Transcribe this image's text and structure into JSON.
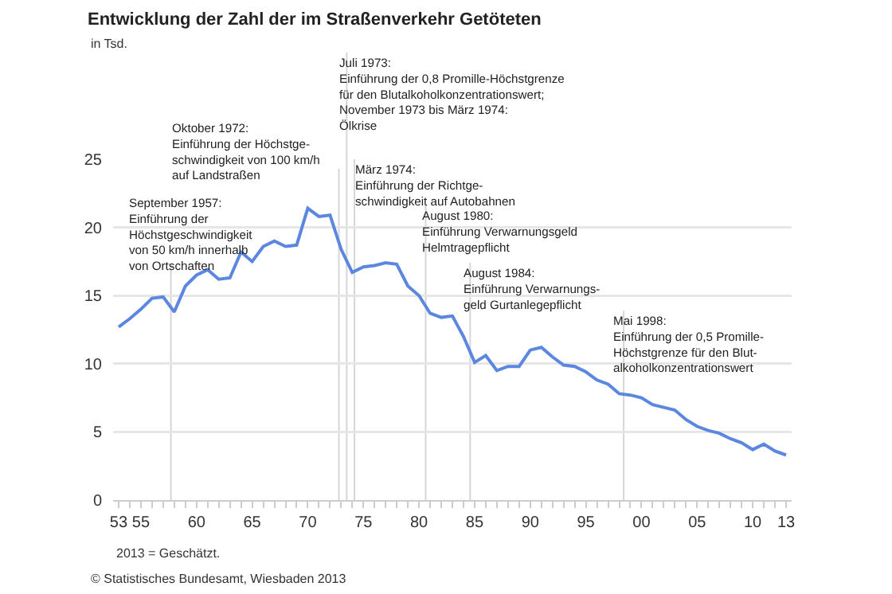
{
  "chart_data": {
    "type": "line",
    "title": "Entwicklung der Zahl der im Straßenverkehr Getöteten",
    "subtitle": "in Tsd.",
    "x": [
      1953,
      1954,
      1955,
      1956,
      1957,
      1958,
      1959,
      1960,
      1961,
      1962,
      1963,
      1964,
      1965,
      1966,
      1967,
      1968,
      1969,
      1970,
      1971,
      1972,
      1973,
      1974,
      1975,
      1976,
      1977,
      1978,
      1979,
      1980,
      1981,
      1982,
      1983,
      1984,
      1985,
      1986,
      1987,
      1988,
      1989,
      1990,
      1991,
      1992,
      1993,
      1994,
      1995,
      1996,
      1997,
      1998,
      1999,
      2000,
      2001,
      2002,
      2003,
      2004,
      2005,
      2006,
      2007,
      2008,
      2009,
      2010,
      2011,
      2012,
      2013
    ],
    "series": [
      {
        "color": "#5b87e0",
        "values": [
          12.7,
          13.3,
          14.0,
          14.8,
          14.9,
          13.8,
          15.7,
          16.5,
          16.9,
          16.2,
          16.3,
          18.2,
          17.5,
          18.6,
          19.0,
          18.6,
          18.7,
          21.4,
          20.8,
          20.9,
          18.4,
          16.7,
          17.1,
          17.2,
          17.4,
          17.3,
          15.7,
          15.0,
          13.7,
          13.4,
          13.5,
          12.0,
          10.1,
          10.6,
          9.5,
          9.8,
          9.8,
          11.0,
          11.2,
          10.5,
          9.9,
          9.8,
          9.4,
          8.8,
          8.5,
          7.8,
          7.7,
          7.5,
          7.0,
          6.8,
          6.6,
          5.9,
          5.4,
          5.1,
          4.9,
          4.5,
          4.2,
          3.7,
          4.1,
          3.6,
          3.3
        ]
      }
    ],
    "xlim": [
      1952.5,
      2013.5
    ],
    "xticks": [
      {
        "value": 1953,
        "label": "53"
      },
      {
        "value": 1954,
        "label": null
      },
      {
        "value": 1955,
        "label": "55"
      },
      {
        "value": 1956,
        "label": null
      },
      {
        "value": 1957,
        "label": null
      },
      {
        "value": 1958,
        "label": null
      },
      {
        "value": 1959,
        "label": null
      },
      {
        "value": 1960,
        "label": "60"
      },
      {
        "value": 1961,
        "label": null
      },
      {
        "value": 1962,
        "label": null
      },
      {
        "value": 1963,
        "label": null
      },
      {
        "value": 1964,
        "label": null
      },
      {
        "value": 1965,
        "label": "65"
      },
      {
        "value": 1966,
        "label": null
      },
      {
        "value": 1967,
        "label": null
      },
      {
        "value": 1968,
        "label": null
      },
      {
        "value": 1969,
        "label": null
      },
      {
        "value": 1970,
        "label": "70"
      },
      {
        "value": 1971,
        "label": null
      },
      {
        "value": 1972,
        "label": null
      },
      {
        "value": 1973,
        "label": null
      },
      {
        "value": 1974,
        "label": null
      },
      {
        "value": 1975,
        "label": "75"
      },
      {
        "value": 1976,
        "label": null
      },
      {
        "value": 1977,
        "label": null
      },
      {
        "value": 1978,
        "label": null
      },
      {
        "value": 1979,
        "label": null
      },
      {
        "value": 1980,
        "label": "80"
      },
      {
        "value": 1981,
        "label": null
      },
      {
        "value": 1982,
        "label": null
      },
      {
        "value": 1983,
        "label": null
      },
      {
        "value": 1984,
        "label": null
      },
      {
        "value": 1985,
        "label": "85"
      },
      {
        "value": 1986,
        "label": null
      },
      {
        "value": 1987,
        "label": null
      },
      {
        "value": 1988,
        "label": null
      },
      {
        "value": 1989,
        "label": null
      },
      {
        "value": 1990,
        "label": "90"
      },
      {
        "value": 1991,
        "label": null
      },
      {
        "value": 1992,
        "label": null
      },
      {
        "value": 1993,
        "label": null
      },
      {
        "value": 1994,
        "label": null
      },
      {
        "value": 1995,
        "label": "95"
      },
      {
        "value": 1996,
        "label": null
      },
      {
        "value": 1997,
        "label": null
      },
      {
        "value": 1998,
        "label": null
      },
      {
        "value": 1999,
        "label": null
      },
      {
        "value": 2000,
        "label": "00"
      },
      {
        "value": 2001,
        "label": null
      },
      {
        "value": 2002,
        "label": null
      },
      {
        "value": 2003,
        "label": null
      },
      {
        "value": 2004,
        "label": null
      },
      {
        "value": 2005,
        "label": "05"
      },
      {
        "value": 2006,
        "label": null
      },
      {
        "value": 2007,
        "label": null
      },
      {
        "value": 2008,
        "label": null
      },
      {
        "value": 2009,
        "label": null
      },
      {
        "value": 2010,
        "label": "10"
      },
      {
        "value": 2011,
        "label": null
      },
      {
        "value": 2012,
        "label": null
      },
      {
        "value": 2013,
        "label": "13"
      }
    ],
    "ylim": [
      0,
      25
    ],
    "yticks": [
      0,
      5,
      10,
      15,
      20,
      25
    ],
    "grid": "y",
    "marker": "none",
    "line_style": "solid",
    "ref_lines": [
      {
        "axis": "x",
        "value": 1957.7,
        "label": "September 1957:\nEinführung der\nHöchstgeschwindigkeit\nvon 50 km/h innerhalb\nvon Ortschaften"
      },
      {
        "axis": "x",
        "value": 1972.8,
        "label": "Oktober 1972:\nEinführung der Höchstge-\nschwindigkeit von 100 km/h\nauf Landstraßen"
      },
      {
        "axis": "x",
        "value": 1973.5,
        "label": "Juli 1973:\nEinführung der 0,8 Promille-Höchstgrenze\nfür den Blutalkoholkonzentrationswert;\nNovember 1973 bis März 1974:\nÖlkrise"
      },
      {
        "axis": "x",
        "value": 1974.2,
        "label": "März 1974:\nEinführung der Richtge-\nschwindigkeit auf Autobahnen"
      },
      {
        "axis": "x",
        "value": 1980.6,
        "label": "August 1980:\nEinführung Verwarnungsgeld\nHelmtragepflicht"
      },
      {
        "axis": "x",
        "value": 1984.6,
        "label": "August 1984:\nEinführung Verwarnungs-\ngeld Gurtanlegepflicht"
      },
      {
        "axis": "x",
        "value": 1998.4,
        "label": "Mai 1998:\nEinführung der 0,5 Promille-\nHöchstgrenze für den Blut-\nalkoholkonzentrationswert"
      }
    ],
    "annotations": [
      "2013 = Geschätzt.",
      "© Statistisches Bundesamt, Wiesbaden 2013"
    ]
  }
}
